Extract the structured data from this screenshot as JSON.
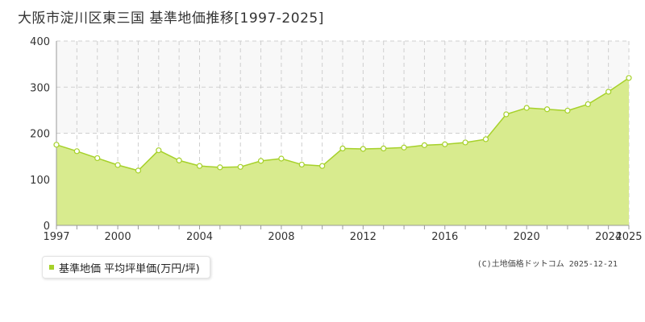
{
  "title": "大阪市淀川区東三国 基準地価推移[1997-2025]",
  "legend": {
    "label": "基準地価 平均坪単価(万円/坪)"
  },
  "credit": "(C)土地価格ドットコム 2025-12-21",
  "colors": {
    "area_fill": "#d8eb8e",
    "line": "#a6d12a",
    "marker_fill": "#ffffff",
    "grid": "#cfcfcf",
    "axis": "#999999",
    "plot_band_upper": "#f8f8f8"
  },
  "chart_data": {
    "type": "area",
    "title": "大阪市淀川区東三国 基準地価推移[1997-2025]",
    "xlabel": "",
    "ylabel": "",
    "xlim": [
      1997,
      2025
    ],
    "ylim": [
      0,
      400
    ],
    "y_ticks": [
      0,
      100,
      200,
      300,
      400
    ],
    "x_tick_labels": [
      1997,
      2000,
      2004,
      2008,
      2012,
      2016,
      2020,
      2024,
      2025
    ],
    "grid": true,
    "legend_position": "bottom-left",
    "series": [
      {
        "name": "基準地価 平均坪単価(万円/坪)",
        "x": [
          1997,
          1998,
          1999,
          2000,
          2001,
          2002,
          2003,
          2004,
          2005,
          2006,
          2007,
          2008,
          2009,
          2010,
          2011,
          2012,
          2013,
          2014,
          2015,
          2016,
          2017,
          2018,
          2019,
          2020,
          2021,
          2022,
          2023,
          2024,
          2025
        ],
        "values": [
          175,
          161,
          146,
          131,
          119,
          163,
          141,
          129,
          126,
          127,
          140,
          145,
          132,
          129,
          167,
          166,
          167,
          169,
          174,
          176,
          180,
          187,
          241,
          255,
          252,
          249,
          263,
          290,
          320
        ]
      }
    ]
  }
}
